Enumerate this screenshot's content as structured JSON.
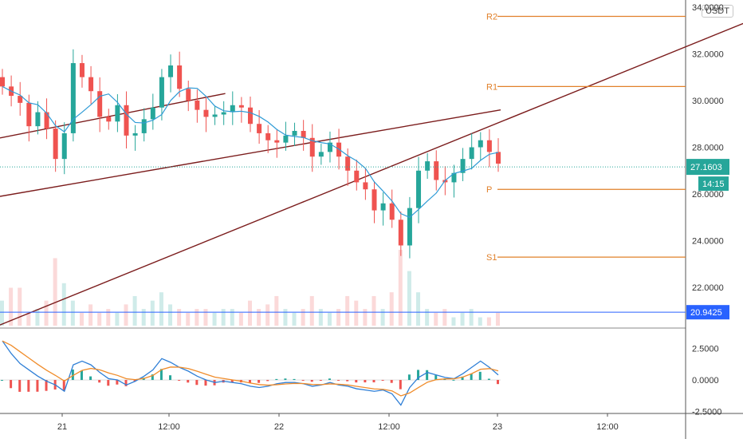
{
  "unit_label": "USDT",
  "colors": {
    "up": "#26a69a",
    "down": "#ef5350",
    "ma": "#2f9bd6",
    "channel": "#7b1c1c",
    "pivot": "#e1802a",
    "price_badge": "#26a69a",
    "low_line": "#2962ff",
    "macd": "#2f7fd6",
    "signal": "#f08c2a"
  },
  "chart_data": {
    "type": "candlestick",
    "price_axis": {
      "ylim": [
        20.3,
        34.3
      ],
      "ticks": [
        "34.0000",
        "32.0000",
        "30.0000",
        "28.0000",
        "26.0000",
        "24.0000",
        "22.0000"
      ],
      "tick_values": [
        34,
        32,
        30,
        28,
        26,
        24,
        22
      ]
    },
    "time_axis": {
      "ticks": [
        "21",
        "12:00",
        "22",
        "12:00",
        "23",
        "12:00"
      ]
    },
    "current_price": {
      "value": "27.1603",
      "countdown": "14:15",
      "v": 27.1603
    },
    "low_marker": {
      "value": "20.9425",
      "v": 20.9425
    },
    "pivots": [
      {
        "name": "R2",
        "v": 33.6
      },
      {
        "name": "R1",
        "v": 30.6
      },
      {
        "name": "P",
        "v": 26.2
      },
      {
        "name": "S1",
        "v": 23.3
      }
    ],
    "channel_lines": [
      {
        "from": [
          0,
          20.4
        ],
        "to": [
          64,
          34.3
        ]
      },
      {
        "from": [
          0,
          25.9
        ],
        "to": [
          40,
          29.6
        ]
      },
      {
        "from": [
          0,
          28.4
        ],
        "to": [
          18,
          30.3
        ]
      }
    ],
    "macd_axis": {
      "ylim": [
        -2.6,
        4.0
      ],
      "ticks": [
        "2.5000",
        "0.0000",
        "-2.5000"
      ],
      "tick_values": [
        2.5,
        0,
        -2.5
      ]
    },
    "ohlc_path": [
      30.6,
      30.2,
      29.9,
      28.9,
      29.5,
      28.8,
      27.5,
      28.6,
      31.6,
      31.0,
      30.4,
      29.3,
      29.1,
      29.8,
      28.5,
      28.6,
      29.2,
      29.7,
      31.0,
      31.5,
      30.5,
      30.0,
      29.6,
      29.3,
      29.4,
      29.5,
      29.8,
      29.7,
      29.0,
      28.6,
      28.3,
      28.2,
      28.5,
      28.7,
      28.4,
      27.6,
      27.8,
      28.2,
      27.6,
      27.0,
      26.5,
      26.2,
      25.3,
      25.6,
      24.9,
      23.8,
      25.4,
      27.0,
      27.4,
      26.6,
      26.5,
      26.9,
      27.5,
      28.0,
      28.3,
      27.8,
      27.3
    ],
    "rel_volume": [
      0.33,
      0.5,
      0.5,
      0.17,
      0.22,
      0.33,
      0.89,
      0.56,
      0.33,
      0.17,
      0.28,
      0.17,
      0.22,
      0.17,
      0.28,
      0.39,
      0.22,
      0.33,
      0.44,
      0.28,
      0.22,
      0.17,
      0.22,
      0.22,
      0.17,
      0.22,
      0.22,
      0.17,
      0.33,
      0.22,
      0.28,
      0.39,
      0.22,
      0.17,
      0.22,
      0.39,
      0.22,
      0.17,
      0.22,
      0.39,
      0.33,
      0.22,
      0.39,
      0.22,
      0.44,
      1.0,
      0.72,
      0.44,
      0.22,
      0.17,
      0.22,
      0.11,
      0.17,
      0.22,
      0.11,
      0.11,
      0.17
    ],
    "macd_path": [
      3.1,
      2.1,
      1.3,
      0.8,
      0.3,
      -0.1,
      -0.4,
      -0.9,
      1.2,
      1.5,
      1.2,
      0.6,
      0.1,
      0.0,
      -0.4,
      -0.1,
      0.3,
      0.8,
      1.7,
      1.4,
      1.0,
      0.7,
      0.3,
      0.0,
      -0.2,
      -0.1,
      -0.2,
      -0.3,
      -0.5,
      -0.6,
      -0.5,
      -0.3,
      -0.2,
      -0.2,
      -0.3,
      -0.5,
      -0.4,
      -0.2,
      -0.4,
      -0.5,
      -0.7,
      -0.8,
      -0.9,
      -0.8,
      -1.1,
      -2.0,
      -0.6,
      0.2,
      0.6,
      0.4,
      0.2,
      0.1,
      0.5,
      1.0,
      1.5,
      1.0,
      0.4
    ]
  }
}
